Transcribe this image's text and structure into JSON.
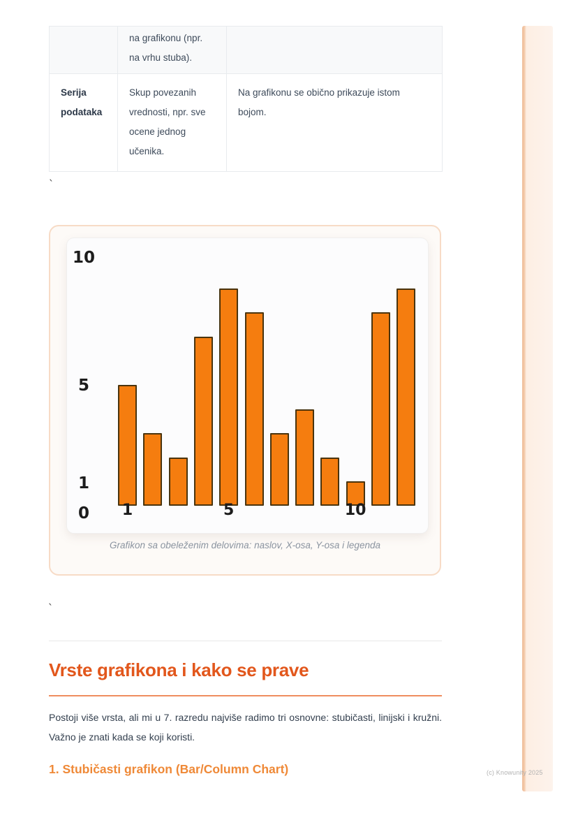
{
  "page": {
    "stray_mark_1": "`",
    "stray_mark_2": "`"
  },
  "watermark": {
    "text": "(c) Knowunity 2025"
  },
  "table": {
    "rows": [
      {
        "term": "",
        "definition": "na grafikonu (npr. na vrhu stuba).",
        "note": ""
      },
      {
        "term": "Serija podataka",
        "definition": "Skup povezanih vrednosti, npr. sve ocene jednog učenika.",
        "note": "Na grafikonu se obično prikazuje istom bojom."
      }
    ]
  },
  "chart_data": {
    "type": "bar",
    "x": [
      1,
      2,
      3,
      4,
      5,
      6,
      7,
      8,
      9,
      10,
      11,
      12
    ],
    "values": [
      5,
      3,
      2,
      7,
      9,
      8,
      3,
      4,
      2,
      1,
      8,
      9
    ],
    "title": "",
    "xlabel": "",
    "ylabel": "",
    "ylim": [
      0,
      10
    ],
    "yticks": [
      "10",
      "5",
      "1",
      "0"
    ],
    "xticks": [
      "1",
      "5",
      "10"
    ],
    "grid": false,
    "legend": false,
    "bar_color": "#f57d0f",
    "bar_edge_color": "#4a340e",
    "caption": "Grafikon sa obeleženim delovima: naslov, X-osa, Y-osa i legenda"
  },
  "section": {
    "heading": "Vrste grafikona i kako se prave",
    "paragraph": "Postoji više vrsta, ali mi u 7. razredu najviše radimo tri osnovne: stubičasti, linijski i kružni. Važno je znati kada se koji koristi.",
    "subheading": "1. Stubičasti grafikon (Bar/Column Chart)"
  },
  "colors": {
    "accent_heading": "#e2571c",
    "accent_subheading": "#ef8937",
    "accent_rule": "#ef8d5f",
    "panel_border": "#f7dbc6",
    "stripe": "#fdeee3",
    "bar_fill": "#f57d0f",
    "bar_edge": "#4a340e",
    "body_text": "#333f4e",
    "caption_text": "#8a939f"
  }
}
